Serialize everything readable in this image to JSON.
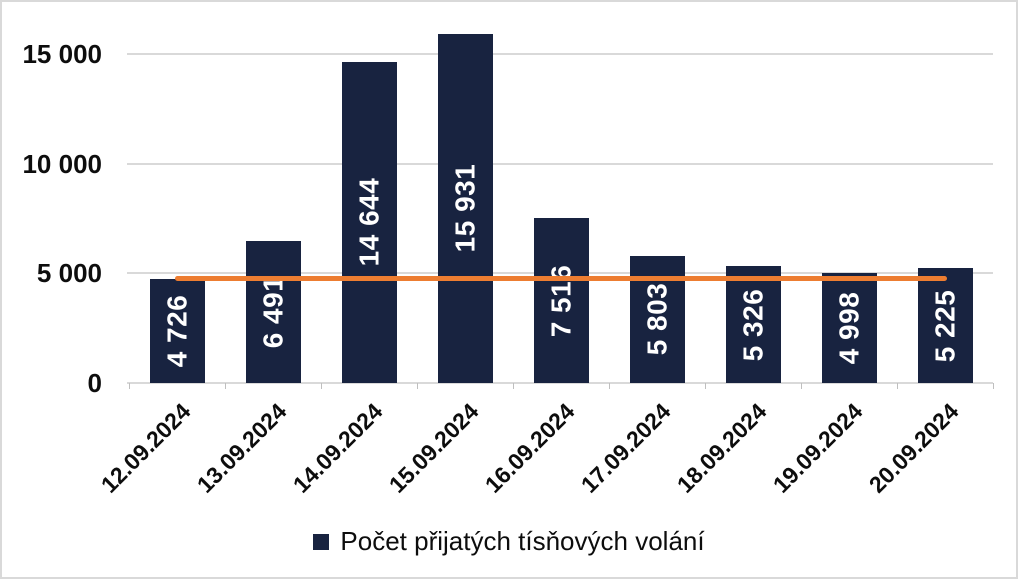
{
  "chart_data": {
    "type": "bar",
    "title": "",
    "categories": [
      "12.09.2024",
      "13.09.2024",
      "14.09.2024",
      "15.09.2024",
      "16.09.2024",
      "17.09.2024",
      "18.09.2024",
      "19.09.2024",
      "20.09.2024"
    ],
    "values": [
      4726,
      6491,
      14644,
      15931,
      7516,
      5803,
      5326,
      4998,
      5225
    ],
    "value_labels": [
      "4 726",
      "6 491",
      "14 644",
      "15 931",
      "7 516",
      "5 803",
      "5 326",
      "4 998",
      "5 225"
    ],
    "xlabel": "",
    "ylabel": "",
    "ylim": [
      0,
      16000
    ],
    "y_ticks": [
      0,
      5000,
      10000,
      15000
    ],
    "y_tick_labels": [
      "0",
      "5 000",
      "10 000",
      "15 000"
    ],
    "grid": true,
    "bar_color": "#182340",
    "bar_label_color": "#FFFFFF",
    "gridline_color": "#D9D9D9",
    "reference_line": {
      "value": 4800,
      "color": "#ED7D31"
    },
    "legend": {
      "position": "bottom",
      "label": "Počet přijatých tísňových volání",
      "marker_color": "#182340"
    }
  }
}
